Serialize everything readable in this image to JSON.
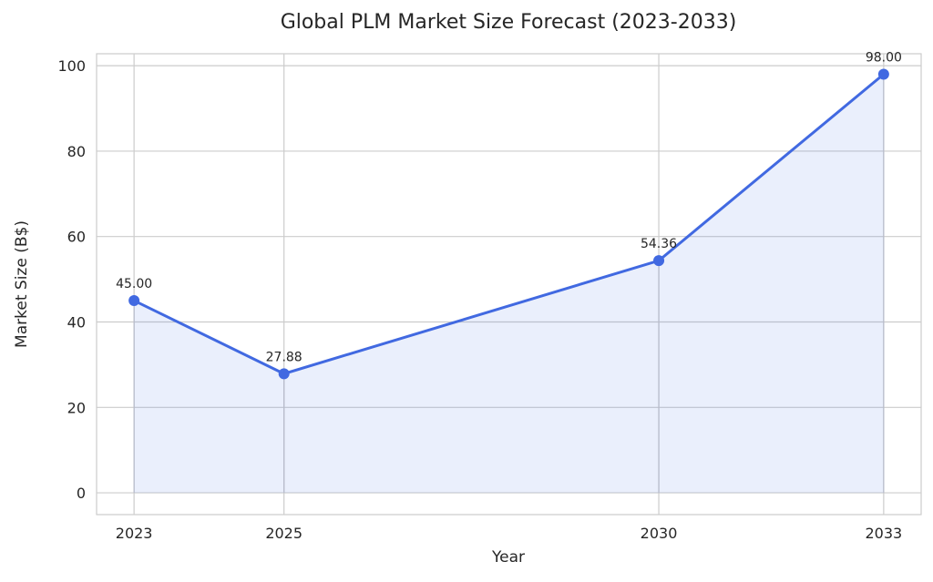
{
  "chart_data": {
    "type": "line",
    "title": "Global PLM Market Size Forecast (2023-2033)",
    "xlabel": "Year",
    "ylabel": "Market Size (B$)",
    "x": [
      2023,
      2025,
      2030,
      2033
    ],
    "x_tick_labels": [
      "2023",
      "2025",
      "2030",
      "2033"
    ],
    "series": [
      {
        "name": "Market Size",
        "values": [
          45.0,
          27.88,
          54.36,
          98.0
        ],
        "color": "#4169E1",
        "fill": true
      }
    ],
    "data_labels": [
      "45.00",
      "27.88",
      "54.36",
      "98.00"
    ],
    "y_ticks": [
      0,
      20,
      40,
      60,
      80,
      100
    ],
    "y_tick_labels": [
      "0",
      "20",
      "40",
      "60",
      "80",
      "100"
    ],
    "xlim": [
      2022.5,
      2033.5
    ],
    "ylim": [
      -5.1,
      102.8
    ],
    "grid": true
  }
}
